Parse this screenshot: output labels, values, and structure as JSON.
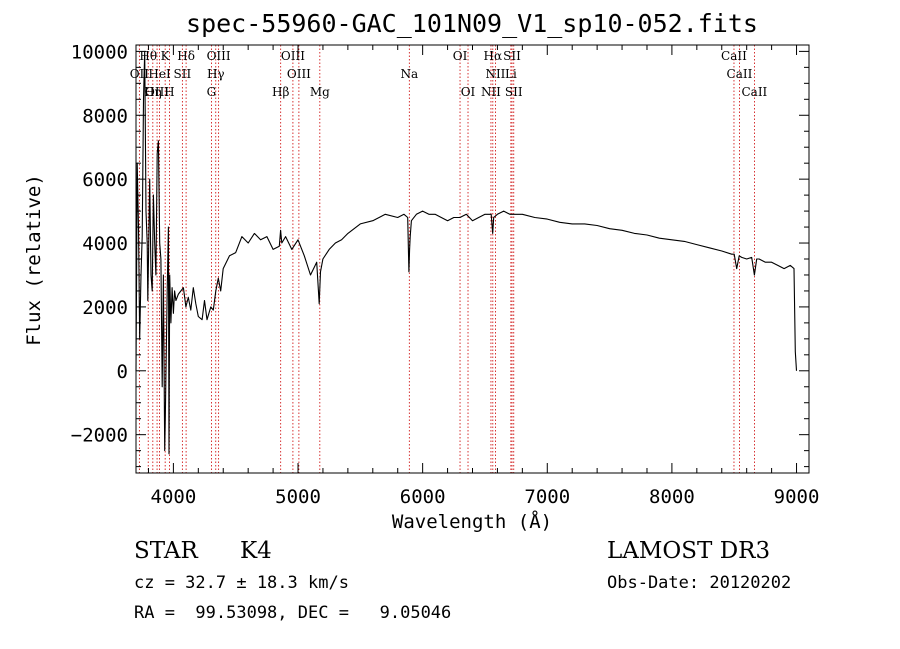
{
  "chart_data": {
    "type": "line",
    "title": "spec-55960-GAC_101N09_V1_sp10-052.fits",
    "xlabel": "Wavelength (Å)",
    "ylabel": "Flux (relative)",
    "xlim": [
      3700,
      9100
    ],
    "ylim": [
      -3200,
      10200
    ],
    "xticks": [
      4000,
      5000,
      6000,
      7000,
      8000,
      9000
    ],
    "yticks": [
      -2000,
      0,
      2000,
      4000,
      6000,
      8000,
      10000
    ],
    "xtick_labels": [
      "4000",
      "5000",
      "6000",
      "7000",
      "8000",
      "9000"
    ],
    "ytick_labels": [
      "−2000",
      "0",
      "2000",
      "4000",
      "6000",
      "8000",
      "10000"
    ],
    "series": [
      {
        "name": "flux",
        "x": [
          3700,
          3705,
          3710,
          3720,
          3730,
          3740,
          3750,
          3760,
          3770,
          3780,
          3790,
          3795,
          3800,
          3810,
          3820,
          3830,
          3840,
          3850,
          3860,
          3870,
          3880,
          3890,
          3900,
          3910,
          3920,
          3930,
          3935,
          3940,
          3950,
          3960,
          3965,
          3970,
          3980,
          3990,
          4000,
          4010,
          4020,
          4040,
          4060,
          4080,
          4100,
          4120,
          4140,
          4160,
          4180,
          4200,
          4230,
          4250,
          4270,
          4300,
          4320,
          4340,
          4360,
          4380,
          4400,
          4450,
          4500,
          4550,
          4600,
          4650,
          4700,
          4750,
          4800,
          4850,
          4860,
          4870,
          4900,
          4950,
          5000,
          5050,
          5100,
          5150,
          5170,
          5180,
          5200,
          5250,
          5300,
          5350,
          5400,
          5500,
          5600,
          5700,
          5800,
          5850,
          5880,
          5890,
          5895,
          5900,
          5910,
          5950,
          6000,
          6050,
          6100,
          6150,
          6200,
          6250,
          6300,
          6350,
          6400,
          6450,
          6500,
          6550,
          6562,
          6570,
          6600,
          6650,
          6700,
          6750,
          6800,
          6900,
          7000,
          7100,
          7200,
          7300,
          7400,
          7500,
          7600,
          7700,
          7800,
          7900,
          8000,
          8100,
          8200,
          8300,
          8400,
          8480,
          8500,
          8520,
          8540,
          8560,
          8600,
          8640,
          8662,
          8680,
          8700,
          8750,
          8800,
          8850,
          8900,
          8950,
          8980,
          8990,
          9000
        ],
        "y": [
          0,
          3000,
          6500,
          4500,
          1000,
          3000,
          4200,
          8500,
          10000,
          5000,
          4000,
          2200,
          3500,
          6000,
          3000,
          2500,
          5500,
          4000,
          3000,
          6800,
          7200,
          4000,
          3500,
          -500,
          3000,
          -2500,
          -1500,
          -200,
          2500,
          4500,
          -2600,
          3000,
          1500,
          2600,
          1800,
          2500,
          2200,
          2400,
          2500,
          2600,
          2000,
          2300,
          1900,
          2600,
          2100,
          1700,
          1600,
          2200,
          1600,
          2000,
          1900,
          2500,
          2900,
          2500,
          3200,
          3600,
          3700,
          4200,
          4000,
          4300,
          4100,
          4200,
          3800,
          3900,
          4400,
          4000,
          4200,
          3800,
          4100,
          3600,
          3000,
          3400,
          2100,
          3100,
          3500,
          3800,
          4000,
          4100,
          4300,
          4600,
          4700,
          4900,
          4800,
          4900,
          4800,
          3100,
          3800,
          4200,
          4700,
          4900,
          5000,
          4900,
          4900,
          4800,
          4700,
          4800,
          4800,
          4900,
          4700,
          4800,
          4900,
          4900,
          4300,
          4800,
          4900,
          5000,
          4900,
          4900,
          4900,
          4800,
          4750,
          4650,
          4600,
          4600,
          4550,
          4450,
          4400,
          4300,
          4250,
          4150,
          4100,
          4050,
          3950,
          3850,
          3750,
          3650,
          3650,
          3200,
          3600,
          3550,
          3500,
          3550,
          3000,
          3500,
          3500,
          3400,
          3400,
          3300,
          3200,
          3300,
          3200,
          600,
          0
        ]
      }
    ],
    "lines": [
      {
        "name": "Hθ",
        "wave": 3798,
        "row": 0
      },
      {
        "name": "K",
        "wave": 3934,
        "row": 0
      },
      {
        "name": "Hδ",
        "wave": 4102,
        "row": 0
      },
      {
        "name": "OIII",
        "wave": 4363,
        "row": 0
      },
      {
        "name": "OIII",
        "wave": 4959,
        "row": 0
      },
      {
        "name": "OI",
        "wave": 6300,
        "row": 0
      },
      {
        "name": "Hα",
        "wave": 6563,
        "row": 0
      },
      {
        "name": "SII",
        "wave": 6717,
        "row": 0
      },
      {
        "name": "CaII",
        "wave": 8498,
        "row": 0
      },
      {
        "name": "OII",
        "wave": 3727,
        "row": 1
      },
      {
        "name": "HeI",
        "wave": 3889,
        "row": 1
      },
      {
        "name": "SII",
        "wave": 4072,
        "row": 1
      },
      {
        "name": "Hγ",
        "wave": 4340,
        "row": 1
      },
      {
        "name": "OIII",
        "wave": 5007,
        "row": 1
      },
      {
        "name": "Na",
        "wave": 5893,
        "row": 1
      },
      {
        "name": "NII",
        "wave": 6584,
        "row": 1
      },
      {
        "name": "Li",
        "wave": 6708,
        "row": 1
      },
      {
        "name": "CaII",
        "wave": 8542,
        "row": 1
      },
      {
        "name": "OIII",
        "wave": 3869,
        "row": 2
      },
      {
        "name": "Hη",
        "wave": 3835,
        "row": 2
      },
      {
        "name": "H",
        "wave": 3968,
        "row": 2
      },
      {
        "name": "G",
        "wave": 4305,
        "row": 2
      },
      {
        "name": "Hβ",
        "wave": 4861,
        "row": 2
      },
      {
        "name": "Mg",
        "wave": 5175,
        "row": 2
      },
      {
        "name": "OI",
        "wave": 6364,
        "row": 2
      },
      {
        "name": "NII",
        "wave": 6548,
        "row": 2
      },
      {
        "name": "SII",
        "wave": 6731,
        "row": 2
      },
      {
        "name": "CaII",
        "wave": 8662,
        "row": 2
      }
    ]
  },
  "info": {
    "class": "STAR",
    "subclass": "K4",
    "survey": "LAMOST DR3",
    "cz": "cz = 32.7 ± 18.3 km/s",
    "obs_date": "Obs-Date: 20120202",
    "coords": "RA =  99.53098, DEC =   9.05046"
  }
}
